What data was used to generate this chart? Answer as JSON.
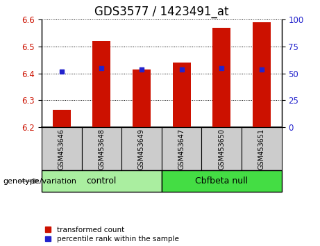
{
  "title": "GDS3577 / 1423491_at",
  "samples": [
    "GSM453646",
    "GSM453648",
    "GSM453649",
    "GSM453647",
    "GSM453650",
    "GSM453651"
  ],
  "transformed_count": [
    6.265,
    6.52,
    6.415,
    6.44,
    6.57,
    6.59
  ],
  "percentile_rank": [
    52,
    55,
    54,
    54,
    55,
    54
  ],
  "ylim_left": [
    6.2,
    6.6
  ],
  "ylim_right": [
    0,
    100
  ],
  "yticks_left": [
    6.2,
    6.3,
    6.4,
    6.5,
    6.6
  ],
  "yticks_right": [
    0,
    25,
    50,
    75,
    100
  ],
  "bar_bottom": 6.2,
  "bar_color": "#cc1100",
  "dot_color": "#2222cc",
  "groups": [
    {
      "label": "control",
      "indices": [
        0,
        1,
        2
      ],
      "color": "#aaeea0"
    },
    {
      "label": "Cbfbeta null",
      "indices": [
        3,
        4,
        5
      ],
      "color": "#44dd44"
    }
  ],
  "group_label_prefix": "genotype/variation",
  "legend_items": [
    {
      "label": "transformed count",
      "color": "#cc1100"
    },
    {
      "label": "percentile rank within the sample",
      "color": "#2222cc"
    }
  ],
  "title_fontsize": 12,
  "tick_fontsize": 8.5,
  "bar_width": 0.45,
  "dot_size": 25,
  "xlabel_color_left": "#cc1100",
  "xlabel_color_right": "#2222cc",
  "sample_area_color": "#cccccc",
  "arrow_color": "#888888"
}
